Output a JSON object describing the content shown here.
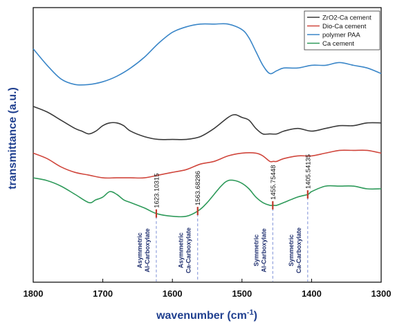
{
  "chart_data": {
    "type": "line",
    "title": "",
    "xlabel": "wavenumber (cm",
    "xlabel_sup": "-1",
    "xlabel_close": ")",
    "ylabel": "transmittance (a.u.)",
    "xlim": [
      1800,
      1300
    ],
    "x_reversed": true,
    "x_ticks": [
      "1800",
      "1700",
      "1600",
      "1500",
      "1400",
      "1300"
    ],
    "y_ticks_shown": false,
    "ylim": [
      0,
      1
    ],
    "grid": false,
    "legend": {
      "placement": "top-right",
      "entries": [
        {
          "label": "ZrO2-Ca cement",
          "color": "#3a3a3a"
        },
        {
          "label": "Dio-Ca cement",
          "color": "#d0463c"
        },
        {
          "label": "polymer PAA",
          "color": "#3a86c8"
        },
        {
          "label": "Ca cement",
          "color": "#2e9a5a"
        }
      ]
    },
    "series": [
      {
        "name": "polymer PAA",
        "color": "#3a86c8",
        "x": [
          1800,
          1780,
          1760,
          1740,
          1720,
          1700,
          1680,
          1660,
          1640,
          1620,
          1600,
          1580,
          1560,
          1540,
          1520,
          1500,
          1490,
          1480,
          1470,
          1460,
          1450,
          1440,
          1420,
          1400,
          1380,
          1360,
          1340,
          1320,
          1300
        ],
        "y": [
          0.85,
          0.79,
          0.74,
          0.72,
          0.72,
          0.73,
          0.75,
          0.78,
          0.82,
          0.87,
          0.91,
          0.93,
          0.94,
          0.94,
          0.94,
          0.92,
          0.89,
          0.84,
          0.79,
          0.76,
          0.77,
          0.78,
          0.78,
          0.79,
          0.79,
          0.8,
          0.79,
          0.78,
          0.76
        ]
      },
      {
        "name": "ZrO2-Ca cement",
        "color": "#3a3a3a",
        "x": [
          1800,
          1780,
          1760,
          1740,
          1730,
          1720,
          1710,
          1700,
          1690,
          1680,
          1670,
          1660,
          1640,
          1620,
          1600,
          1580,
          1560,
          1540,
          1520,
          1510,
          1500,
          1490,
          1480,
          1470,
          1460,
          1450,
          1440,
          1420,
          1400,
          1380,
          1360,
          1340,
          1320,
          1300
        ],
        "y": [
          0.64,
          0.62,
          0.59,
          0.56,
          0.55,
          0.54,
          0.55,
          0.57,
          0.58,
          0.58,
          0.57,
          0.55,
          0.53,
          0.52,
          0.52,
          0.52,
          0.53,
          0.56,
          0.6,
          0.61,
          0.6,
          0.59,
          0.56,
          0.54,
          0.54,
          0.54,
          0.55,
          0.56,
          0.55,
          0.56,
          0.57,
          0.57,
          0.58,
          0.58
        ]
      },
      {
        "name": "Dio-Ca cement",
        "color": "#d0463c",
        "x": [
          1800,
          1780,
          1760,
          1740,
          1720,
          1700,
          1680,
          1660,
          1640,
          1620,
          1600,
          1580,
          1560,
          1540,
          1520,
          1500,
          1480,
          1470,
          1460,
          1455,
          1450,
          1440,
          1420,
          1400,
          1380,
          1360,
          1340,
          1320,
          1300
        ],
        "y": [
          0.47,
          0.45,
          0.42,
          0.4,
          0.39,
          0.38,
          0.38,
          0.38,
          0.38,
          0.39,
          0.4,
          0.41,
          0.43,
          0.44,
          0.46,
          0.47,
          0.47,
          0.46,
          0.44,
          0.44,
          0.44,
          0.45,
          0.46,
          0.46,
          0.47,
          0.48,
          0.48,
          0.48,
          0.47
        ]
      },
      {
        "name": "Ca cement",
        "color": "#2e9a5a",
        "x": [
          1800,
          1780,
          1760,
          1740,
          1720,
          1710,
          1700,
          1690,
          1680,
          1670,
          1660,
          1640,
          1623,
          1600,
          1580,
          1563,
          1550,
          1530,
          1520,
          1510,
          1500,
          1490,
          1480,
          1470,
          1460,
          1455,
          1450,
          1440,
          1420,
          1405,
          1400,
          1380,
          1360,
          1340,
          1320,
          1300
        ],
        "y": [
          0.38,
          0.37,
          0.35,
          0.32,
          0.29,
          0.3,
          0.31,
          0.33,
          0.32,
          0.3,
          0.29,
          0.27,
          0.25,
          0.24,
          0.24,
          0.26,
          0.29,
          0.35,
          0.37,
          0.37,
          0.36,
          0.34,
          0.31,
          0.29,
          0.28,
          0.28,
          0.28,
          0.29,
          0.31,
          0.32,
          0.33,
          0.35,
          0.35,
          0.35,
          0.34,
          0.34
        ]
      }
    ],
    "annotations": [
      {
        "x": 1623.10315,
        "label": "1623.10315",
        "assignment": [
          "Asymmetric",
          "Al-Carboxylate"
        ]
      },
      {
        "x": 1563.68286,
        "label": "1563.68286",
        "assignment": [
          "Asymmetric",
          "Ca-Carboxylate"
        ]
      },
      {
        "x": 1455.75448,
        "label": "1455.75448",
        "assignment": [
          "Symmetric",
          "Al-Carboxylate"
        ]
      },
      {
        "x": 1405.54135,
        "label": "1405.54135",
        "assignment": [
          "Symmetric",
          "Ca-Carboxylate"
        ]
      }
    ]
  }
}
